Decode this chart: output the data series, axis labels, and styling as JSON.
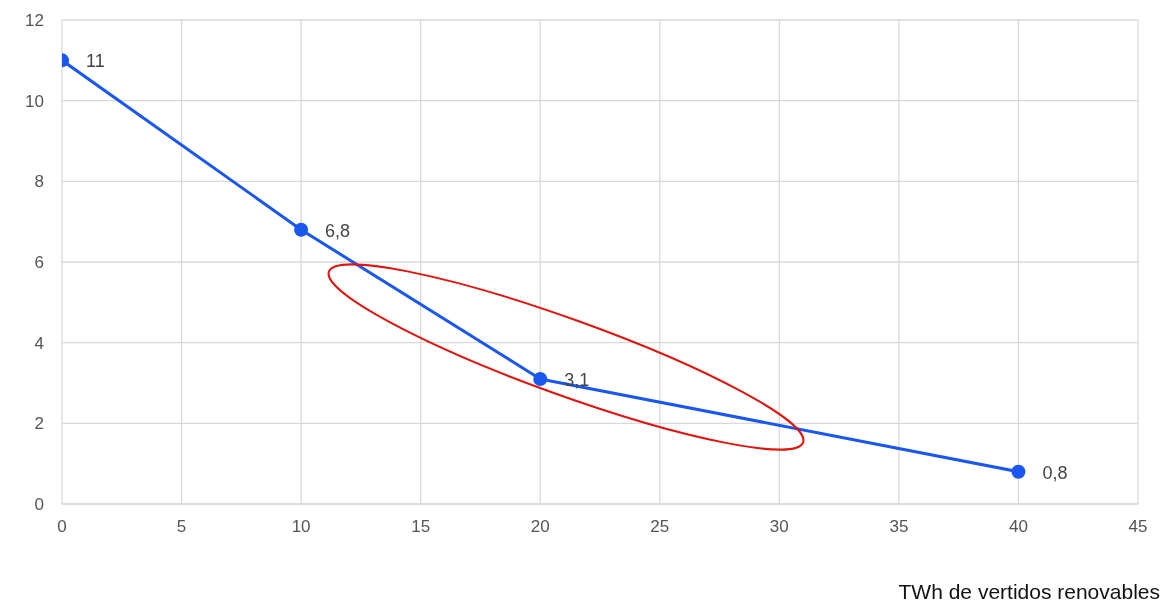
{
  "chart_data": {
    "type": "line",
    "xlabel": "TWh de vertidos renovables",
    "x": [
      0,
      10,
      20,
      40
    ],
    "series": [
      {
        "color": "#1a56f0",
        "values": [
          11,
          6.8,
          3.1,
          0.8
        ],
        "value_labels": [
          "11",
          "6,8",
          "3,1",
          "0,8"
        ]
      }
    ],
    "xlim": [
      0,
      45
    ],
    "xticks": [
      0,
      5,
      10,
      15,
      20,
      25,
      30,
      35,
      40,
      45
    ],
    "ylim": [
      0,
      12
    ],
    "yticks": [
      0,
      2,
      4,
      6,
      8,
      10,
      12
    ],
    "grid": true,
    "marker": "circle",
    "line_style": "solid"
  }
}
